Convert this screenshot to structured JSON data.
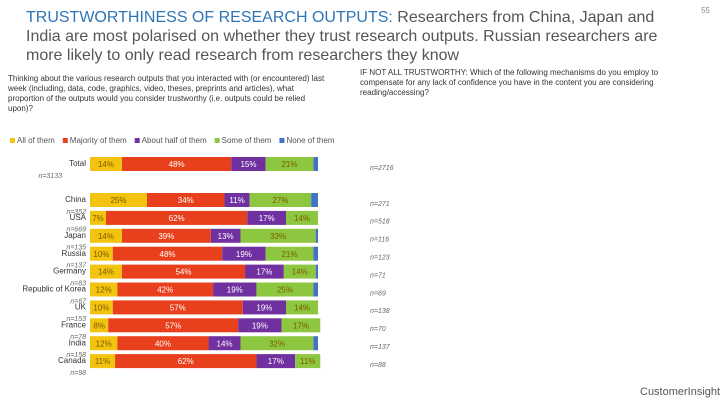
{
  "page_number": "55",
  "title_lead": "TRUSTWORTHINESS OF RESEARCH OUTPUTS:",
  "title_rest": "Researchers from China, Japan and India are most polarised on whether they trust research outputs. Russian researchers are more likely to only read research from researchers they know",
  "question_left": "Thinking about the various research outputs that you interacted with (or encountered) last week (including, data, code, graphics, video, theses, preprints and articles), what proportion of the outputs would you consider trustworthy (i.e. outputs could be relied upon)?",
  "question_right": "IF NOT ALL TRUSTWORTHY: Which of the following mechanisms do you employ to compensate for any lack of confidence you have in the content you are considering reading/accessing?",
  "brand": "CustomerInsights",
  "n_left": [
    "n=3133",
    "n=352",
    "n=669",
    "n=135",
    "n=137",
    "n=83",
    "n=67",
    "n=153",
    "n=78",
    "n=158",
    "n=98"
  ],
  "n_right": [
    "n=2716",
    "n=271",
    "n=518",
    "n=116",
    "n=123",
    "n=71",
    "n=69",
    "n=138",
    "n=70",
    "n=137",
    "n=88"
  ],
  "chart_data": {
    "type": "bar",
    "orientation": "horizontal",
    "stacked": true,
    "categories": [
      "Total",
      "China",
      "USA",
      "Japan",
      "Russia",
      "Germany",
      "Republic of Korea",
      "UK",
      "France",
      "India",
      "Canada"
    ],
    "xlim": [
      0,
      100
    ],
    "series": [
      {
        "name": "All of them",
        "color": "#f2c40f",
        "values": [
          14,
          25,
          7,
          14,
          10,
          14,
          12,
          10,
          8,
          12,
          11
        ],
        "value_labels": [
          "14%",
          "25%",
          "7%",
          "14%",
          "10%",
          "14%",
          "12%",
          "10%",
          "8%",
          "12%",
          "11%"
        ]
      },
      {
        "name": "Majority of them",
        "color": "#e8401c",
        "values": [
          48,
          34,
          62,
          39,
          48,
          54,
          42,
          57,
          57,
          40,
          62
        ],
        "value_labels": [
          "48%",
          "34%",
          "62%",
          "39%",
          "48%",
          "54%",
          "42%",
          "57%",
          "57%",
          "40%",
          "62%"
        ]
      },
      {
        "name": "About half of them",
        "color": "#7030a0",
        "values": [
          15,
          11,
          17,
          13,
          19,
          17,
          19,
          19,
          19,
          14,
          17
        ],
        "value_labels": [
          "15%",
          "11%",
          "17%",
          "13%",
          "19%",
          "17%",
          "19%",
          "19%",
          "19%",
          "14%",
          "17%"
        ]
      },
      {
        "name": "Some of them",
        "color": "#8dc63f",
        "values": [
          21,
          27,
          14,
          33,
          21,
          14,
          25,
          14,
          17,
          32,
          11
        ],
        "value_labels": [
          "21%",
          "27%",
          "14%",
          "33%",
          "21%",
          "14%",
          "25%",
          "14%",
          "17%",
          "32%",
          "11%"
        ]
      },
      {
        "name": "None of them",
        "color": "#4472c4",
        "values": [
          2,
          3,
          0,
          1,
          2,
          1,
          2,
          0,
          0,
          2,
          0
        ]
      }
    ]
  }
}
